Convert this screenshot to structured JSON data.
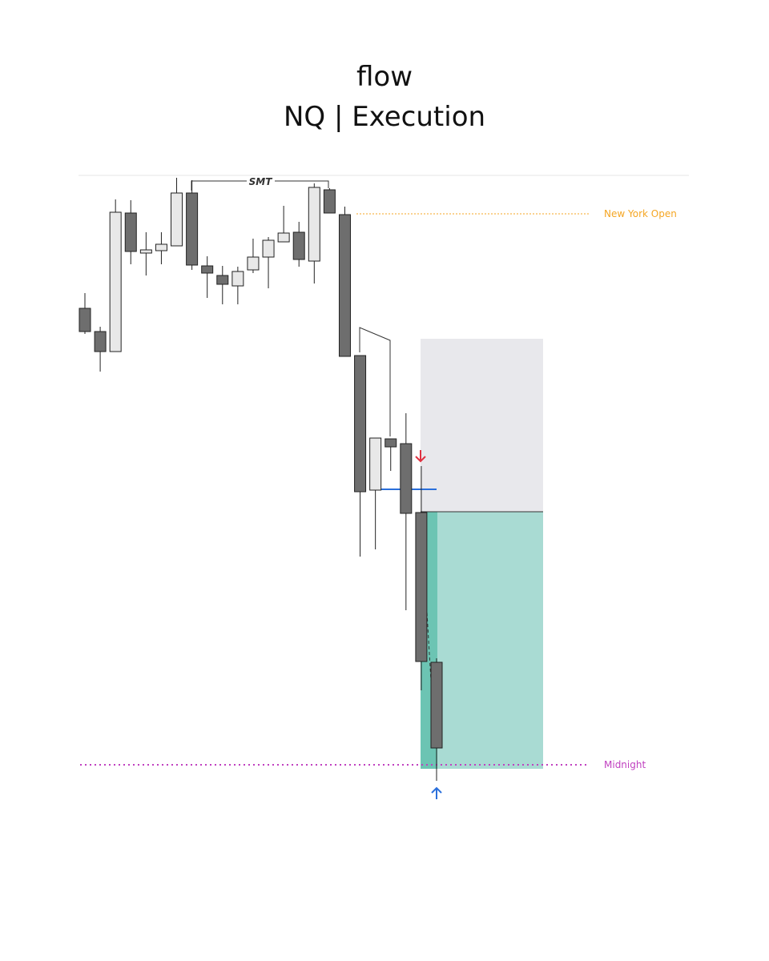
{
  "chart_data": {
    "type": "candlestick",
    "title": "flow",
    "subtitle": "NQ | Execution",
    "annotations": [
      "SMT",
      "New York Open",
      "Midnight"
    ],
    "categories": [
      null,
      null,
      null,
      null,
      null,
      null,
      null,
      null,
      null,
      null,
      null,
      null,
      null,
      null,
      null,
      null,
      null,
      null,
      null,
      null,
      null,
      null,
      null,
      null
    ],
    "open": [
      715,
      686,
      661,
      834,
      784,
      787,
      793,
      859,
      768,
      756,
      743,
      763,
      779,
      798,
      810,
      774,
      863,
      832,
      656,
      488,
      552,
      546,
      460,
      273
    ],
    "high": [
      734,
      692,
      851,
      850,
      810,
      810,
      878,
      875,
      780,
      768,
      767,
      802,
      804,
      843,
      823,
      871,
      865,
      842,
      656,
      553,
      552,
      584,
      518,
      278
    ],
    "low": [
      683,
      636,
      661,
      770,
      756,
      770,
      793,
      763,
      728,
      720,
      720,
      759,
      740,
      798,
      767,
      746,
      834,
      655,
      405,
      414,
      512,
      338,
      238,
      125
    ],
    "close": [
      686,
      661,
      835,
      786,
      788,
      795,
      859,
      769,
      759,
      745,
      761,
      779,
      800,
      809,
      776,
      866,
      834,
      655,
      486,
      553,
      542,
      459,
      274,
      166
    ],
    "up_color": "#e8e8e8",
    "down_color": "#6e6e6e",
    "ylim": [
      80,
      900
    ]
  }
}
